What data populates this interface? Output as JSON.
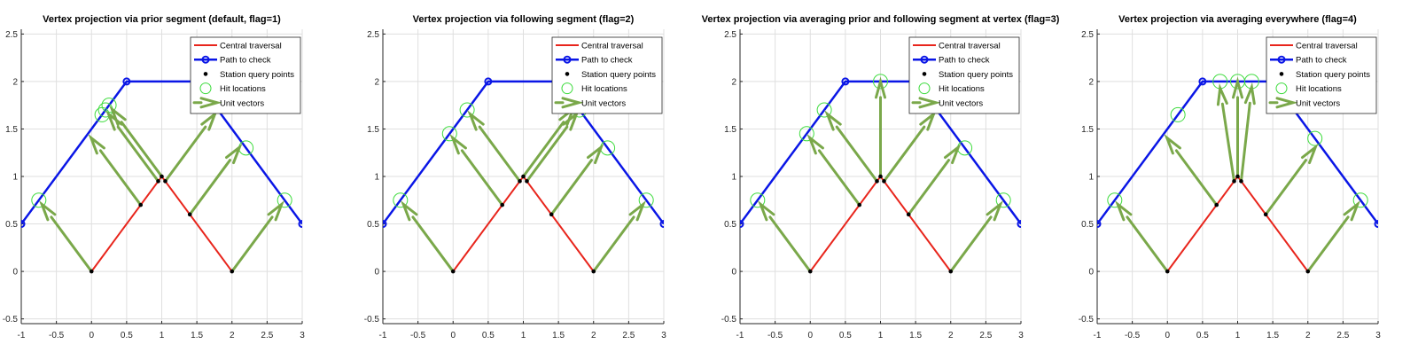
{
  "colors": {
    "central": "#e8251c",
    "path": "#0a16e6",
    "station": "#000000",
    "hit": "#3fdc3f",
    "vector": "#7aa84a",
    "grid": "#dfdfdf",
    "axis": "#262626"
  },
  "chart_data": [
    {
      "type": "line",
      "title": "Vertex projection via prior segment (default, flag=1)",
      "xlim": [
        -1,
        3
      ],
      "ylim": [
        -0.55,
        2.55
      ],
      "xticks": [
        "-1",
        "-0.5",
        "0",
        "0.5",
        "1",
        "1.5",
        "2",
        "2.5",
        "3"
      ],
      "yticks": [
        "-0.5",
        "0",
        "0.5",
        "1",
        "1.5",
        "2",
        "2.5"
      ],
      "grid": true,
      "legend_placement": "top-right",
      "legend": [
        "Central traversal",
        "Path to check",
        "Station query points",
        "Hit locations",
        "Unit vectors"
      ],
      "central_traversal": [
        [
          0,
          0
        ],
        [
          1,
          1
        ],
        [
          2,
          0
        ]
      ],
      "path_to_check": [
        [
          -1,
          0.5
        ],
        [
          0.5,
          2
        ],
        [
          1.5,
          2
        ],
        [
          3,
          0.5
        ]
      ],
      "station_query_points": [
        [
          0,
          0
        ],
        [
          0.7,
          0.7
        ],
        [
          0.95,
          0.95
        ],
        [
          1,
          1
        ],
        [
          1.05,
          0.95
        ],
        [
          1.4,
          0.6
        ],
        [
          2,
          0
        ]
      ],
      "hit_locations": [
        [
          -0.75,
          0.75
        ],
        [
          0.15,
          1.65
        ],
        [
          0.2,
          1.7
        ],
        [
          0.25,
          1.75
        ],
        [
          1.65,
          1.85
        ],
        [
          2.2,
          1.3
        ],
        [
          2.75,
          0.75
        ]
      ],
      "unit_vectors": [
        [
          0,
          0,
          -0.707,
          0.707
        ],
        [
          0.7,
          0.7,
          -0.707,
          0.707
        ],
        [
          0.95,
          0.95,
          -0.707,
          0.707
        ],
        [
          1,
          1,
          -0.707,
          0.707
        ],
        [
          1.05,
          0.95,
          0.707,
          0.707
        ],
        [
          1.4,
          0.6,
          0.707,
          0.707
        ],
        [
          2,
          0,
          0.707,
          0.707
        ]
      ]
    },
    {
      "type": "line",
      "title": "Vertex projection via following segment (flag=2)",
      "xlim": [
        -1,
        3
      ],
      "ylim": [
        -0.55,
        2.55
      ],
      "xticks": [
        "-1",
        "-0.5",
        "0",
        "0.5",
        "1",
        "1.5",
        "2",
        "2.5",
        "3"
      ],
      "yticks": [
        "-0.5",
        "0",
        "0.5",
        "1",
        "1.5",
        "2",
        "2.5"
      ],
      "grid": true,
      "legend_placement": "top-right",
      "legend": [
        "Central traversal",
        "Path to check",
        "Station query points",
        "Hit locations",
        "Unit vectors"
      ],
      "central_traversal": [
        [
          0,
          0
        ],
        [
          1,
          1
        ],
        [
          2,
          0
        ]
      ],
      "path_to_check": [
        [
          -1,
          0.5
        ],
        [
          0.5,
          2
        ],
        [
          1.5,
          2
        ],
        [
          3,
          0.5
        ]
      ],
      "station_query_points": [
        [
          0,
          0
        ],
        [
          0.7,
          0.7
        ],
        [
          0.95,
          0.95
        ],
        [
          1,
          1
        ],
        [
          1.05,
          0.95
        ],
        [
          1.4,
          0.6
        ],
        [
          2,
          0
        ]
      ],
      "hit_locations": [
        [
          -0.75,
          0.75
        ],
        [
          -0.05,
          1.45
        ],
        [
          0.2,
          1.7
        ],
        [
          1.75,
          1.75
        ],
        [
          1.8,
          1.7
        ],
        [
          2.2,
          1.3
        ],
        [
          2.75,
          0.75
        ]
      ],
      "unit_vectors": [
        [
          0,
          0,
          -0.707,
          0.707
        ],
        [
          0.7,
          0.7,
          -0.707,
          0.707
        ],
        [
          0.95,
          0.95,
          -0.707,
          0.707
        ],
        [
          1,
          1,
          0.707,
          0.707
        ],
        [
          1.05,
          0.95,
          0.707,
          0.707
        ],
        [
          1.4,
          0.6,
          0.707,
          0.707
        ],
        [
          2,
          0,
          0.707,
          0.707
        ]
      ]
    },
    {
      "type": "line",
      "title": "Vertex projection via averaging prior and following segment at vertex (flag=3)",
      "xlim": [
        -1,
        3
      ],
      "ylim": [
        -0.55,
        2.55
      ],
      "xticks": [
        "-1",
        "-0.5",
        "0",
        "0.5",
        "1",
        "1.5",
        "2",
        "2.5",
        "3"
      ],
      "yticks": [
        "-0.5",
        "0",
        "0.5",
        "1",
        "1.5",
        "2",
        "2.5"
      ],
      "grid": true,
      "legend_placement": "top-right",
      "legend": [
        "Central traversal",
        "Path to check",
        "Station query points",
        "Hit locations",
        "Unit vectors"
      ],
      "central_traversal": [
        [
          0,
          0
        ],
        [
          1,
          1
        ],
        [
          2,
          0
        ]
      ],
      "path_to_check": [
        [
          -1,
          0.5
        ],
        [
          0.5,
          2
        ],
        [
          1.5,
          2
        ],
        [
          3,
          0.5
        ]
      ],
      "station_query_points": [
        [
          0,
          0
        ],
        [
          0.7,
          0.7
        ],
        [
          0.95,
          0.95
        ],
        [
          1,
          1
        ],
        [
          1.05,
          0.95
        ],
        [
          1.4,
          0.6
        ],
        [
          2,
          0
        ]
      ],
      "hit_locations": [
        [
          -0.75,
          0.75
        ],
        [
          -0.05,
          1.45
        ],
        [
          0.2,
          1.7
        ],
        [
          1,
          2
        ],
        [
          1.75,
          1.75
        ],
        [
          2.2,
          1.3
        ],
        [
          2.75,
          0.75
        ]
      ],
      "unit_vectors": [
        [
          0,
          0,
          -0.707,
          0.707
        ],
        [
          0.7,
          0.7,
          -0.707,
          0.707
        ],
        [
          0.95,
          0.95,
          -0.707,
          0.707
        ],
        [
          1,
          1,
          0,
          1
        ],
        [
          1.05,
          0.95,
          0.707,
          0.707
        ],
        [
          1.4,
          0.6,
          0.707,
          0.707
        ],
        [
          2,
          0,
          0.707,
          0.707
        ]
      ]
    },
    {
      "type": "line",
      "title": "Vertex projection via averaging everywhere (flag=4)",
      "xlim": [
        -1,
        3
      ],
      "ylim": [
        -0.55,
        2.55
      ],
      "xticks": [
        "-1",
        "-0.5",
        "0",
        "0.5",
        "1",
        "1.5",
        "2",
        "2.5",
        "3"
      ],
      "yticks": [
        "-0.5",
        "0",
        "0.5",
        "1",
        "1.5",
        "2",
        "2.5"
      ],
      "grid": true,
      "legend_placement": "top-right",
      "legend": [
        "Central traversal",
        "Path to check",
        "Station query points",
        "Hit locations",
        "Unit vectors"
      ],
      "central_traversal": [
        [
          0,
          0
        ],
        [
          1,
          1
        ],
        [
          2,
          0
        ]
      ],
      "path_to_check": [
        [
          -1,
          0.5
        ],
        [
          0.5,
          2
        ],
        [
          1.5,
          2
        ],
        [
          3,
          0.5
        ]
      ],
      "station_query_points": [
        [
          0,
          0
        ],
        [
          0.7,
          0.7
        ],
        [
          0.95,
          0.95
        ],
        [
          1,
          1
        ],
        [
          1.05,
          0.95
        ],
        [
          1.4,
          0.6
        ],
        [
          2,
          0
        ]
      ],
      "hit_locations": [
        [
          -0.75,
          0.75
        ],
        [
          0.15,
          1.65
        ],
        [
          0.75,
          2
        ],
        [
          1,
          2
        ],
        [
          1.2,
          2
        ],
        [
          2.1,
          1.4
        ],
        [
          2.75,
          0.75
        ]
      ],
      "unit_vectors": [
        [
          0,
          0,
          -0.707,
          0.707
        ],
        [
          0.7,
          0.7,
          -0.707,
          0.707
        ],
        [
          0.95,
          0.95,
          -0.2,
          0.98
        ],
        [
          1,
          1,
          0,
          1
        ],
        [
          1.05,
          0.95,
          0.15,
          0.99
        ],
        [
          1.4,
          0.6,
          0.707,
          0.707
        ],
        [
          2,
          0,
          0.707,
          0.707
        ]
      ]
    }
  ]
}
